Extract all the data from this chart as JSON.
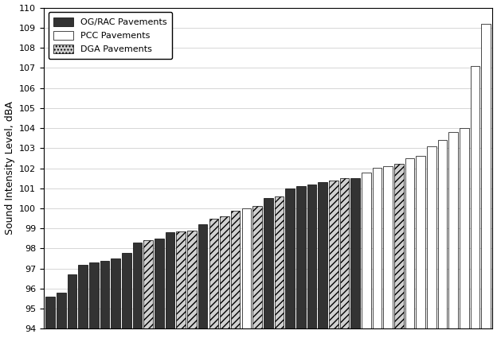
{
  "title": "",
  "ylabel": "Sound Intensity Level, dBA",
  "ylim": [
    94,
    110
  ],
  "yticks": [
    94,
    95,
    96,
    97,
    98,
    99,
    100,
    101,
    102,
    103,
    104,
    105,
    106,
    107,
    108,
    109,
    110
  ],
  "bars": [
    {
      "value": 95.6,
      "type": "OG/RAC"
    },
    {
      "value": 95.8,
      "type": "OG/RAC"
    },
    {
      "value": 96.7,
      "type": "OG/RAC"
    },
    {
      "value": 97.2,
      "type": "OG/RAC"
    },
    {
      "value": 97.3,
      "type": "OG/RAC"
    },
    {
      "value": 97.4,
      "type": "OG/RAC"
    },
    {
      "value": 97.5,
      "type": "OG/RAC"
    },
    {
      "value": 97.8,
      "type": "OG/RAC"
    },
    {
      "value": 98.3,
      "type": "OG/RAC"
    },
    {
      "value": 98.4,
      "type": "DGA"
    },
    {
      "value": 98.5,
      "type": "OG/RAC"
    },
    {
      "value": 98.8,
      "type": "OG/RAC"
    },
    {
      "value": 98.85,
      "type": "DGA"
    },
    {
      "value": 98.9,
      "type": "DGA"
    },
    {
      "value": 99.2,
      "type": "OG/RAC"
    },
    {
      "value": 99.5,
      "type": "DGA"
    },
    {
      "value": 99.6,
      "type": "DGA"
    },
    {
      "value": 99.9,
      "type": "DGA"
    },
    {
      "value": 100.0,
      "type": "PCC"
    },
    {
      "value": 100.1,
      "type": "DGA"
    },
    {
      "value": 100.5,
      "type": "OG/RAC"
    },
    {
      "value": 100.6,
      "type": "DGA"
    },
    {
      "value": 101.0,
      "type": "OG/RAC"
    },
    {
      "value": 101.1,
      "type": "OG/RAC"
    },
    {
      "value": 101.2,
      "type": "OG/RAC"
    },
    {
      "value": 101.3,
      "type": "OG/RAC"
    },
    {
      "value": 101.4,
      "type": "DGA"
    },
    {
      "value": 101.5,
      "type": "DGA"
    },
    {
      "value": 101.5,
      "type": "OG/RAC"
    },
    {
      "value": 101.8,
      "type": "PCC"
    },
    {
      "value": 102.0,
      "type": "PCC"
    },
    {
      "value": 102.1,
      "type": "PCC"
    },
    {
      "value": 102.2,
      "type": "DGA"
    },
    {
      "value": 102.5,
      "type": "PCC"
    },
    {
      "value": 102.6,
      "type": "PCC"
    },
    {
      "value": 103.1,
      "type": "PCC"
    },
    {
      "value": 103.4,
      "type": "PCC"
    },
    {
      "value": 103.8,
      "type": "PCC"
    },
    {
      "value": 104.0,
      "type": "PCC"
    },
    {
      "value": 107.1,
      "type": "PCC"
    },
    {
      "value": 109.2,
      "type": "PCC"
    }
  ],
  "colors": {
    "OG/RAC": "#333333",
    "PCC": "#ffffff",
    "DGA": "#d0d0d0"
  },
  "hatch": {
    "OG/RAC": "",
    "PCC": "",
    "DGA": "////"
  },
  "edgecolor": "#000000",
  "legend_labels": [
    "OG/RAC Pavements",
    "PCC Pavements",
    "DGA Pavements"
  ],
  "legend_types": [
    "OG/RAC",
    "PCC",
    "DGA"
  ],
  "background_color": "#ffffff",
  "grid_color": "#d0d0d0"
}
